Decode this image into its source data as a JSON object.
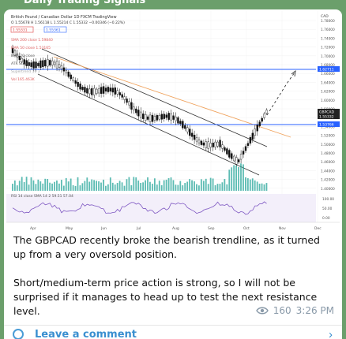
{
  "channel": {
    "title": "Daily Trading Signals"
  },
  "chart": {
    "header": "British Pound / Canadian Dollar  1D  FXCM  TradingView",
    "ohlc": "O 1.55678  H 1.56118  L 1.55214  C 1.55332  −0.00346 (−0.22%)",
    "price_box_1": "1.55331",
    "price_box_2": "1.55361",
    "ind_1": "SMA 200 close  1.59840",
    "ind_2": "EMA 50 close  1.53165",
    "ind_3": "EMA 20 close",
    "ind_4": "ATR Stops",
    "ind_5": "Supertrend 10 3",
    "ind_6": "Vol  165.463K",
    "rsi_label": "RSI 14 close SMA 14 2  59.51  57.04",
    "currency": "CAD",
    "y_ticks": [
      "1.78000",
      "1.76000",
      "1.74000",
      "1.72000",
      "1.70000",
      "1.68000",
      "1.66000",
      "1.64000",
      "1.62000",
      "1.60000",
      "1.58000",
      "1.56000",
      "1.54000",
      "1.52000",
      "1.50000",
      "1.48000",
      "1.46000",
      "1.44000",
      "1.42000",
      "1.40000"
    ],
    "right_labels": [
      {
        "text": "1.62711",
        "color": "#2962ff"
      },
      {
        "text": "GBPCAD",
        "color": "#222222"
      },
      {
        "text": "1.55332",
        "color": "#222222"
      },
      {
        "text": "1.53766",
        "color": "#2962ff"
      }
    ],
    "rsi_ticks": [
      "100.00",
      "50.00",
      "0.00"
    ],
    "x_ticks": [
      "Apr",
      "May",
      "Jun",
      "Jul",
      "Aug",
      "Sep",
      "Oct",
      "Nov",
      "Dec"
    ],
    "x_value_range": [
      "Apr",
      "Dec"
    ],
    "y_value_range": [
      1.4,
      1.78
    ],
    "resistance_level": 1.62711,
    "support_level": 1.53766,
    "last_price": 1.55332
  },
  "message": {
    "paragraph_1": "The GBPCAD recently broke the bearish trendline, as it turned up from a very oversold position.",
    "paragraph_2": "Short/medium-term price action is strong, so I will not be surprised if it manages to head up to test the next resistance level.",
    "views": "160",
    "time": "3:26 PM"
  },
  "comment": {
    "label": "Leave a comment",
    "icon": "comment-circle-icon",
    "chevron": "›"
  },
  "colors": {
    "background": "#6b9f6b",
    "link": "#3a8fd0",
    "candle": "#111111",
    "volume": "#26a69a",
    "rsi": "#7e57c2",
    "sma200": "#f0a35e"
  }
}
